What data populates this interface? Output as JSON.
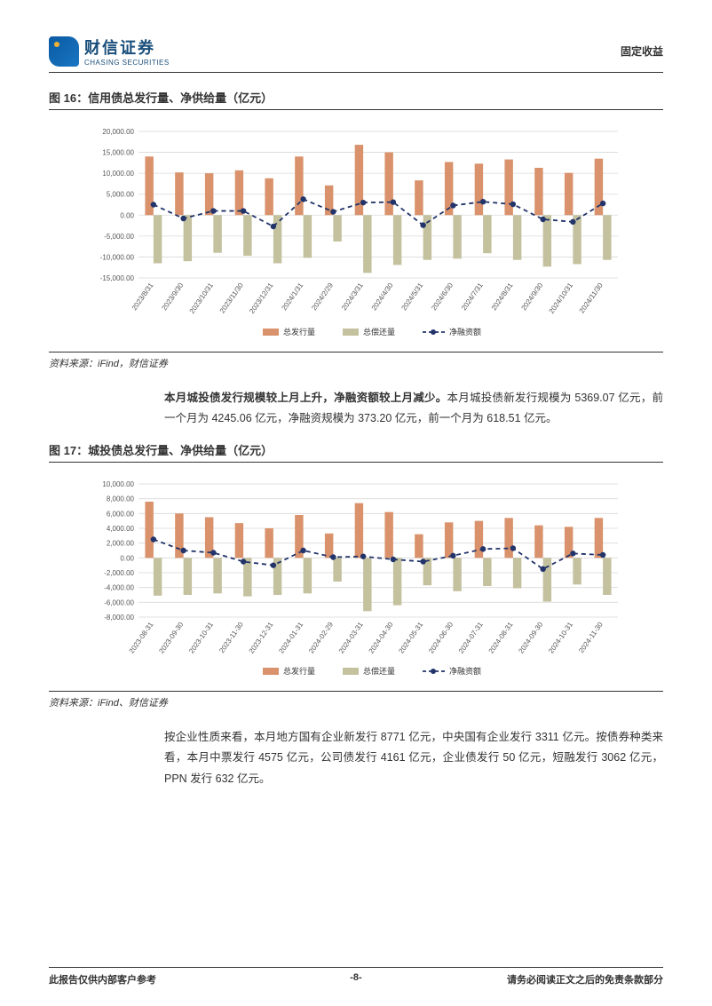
{
  "header": {
    "company_cn": "财信证券",
    "company_en": "CHASING SECURITIES",
    "category": "固定收益"
  },
  "figure16": {
    "title": "图 16：信用债总发行量、净供给量（亿元）",
    "source": "资料来源：iFind，财信证券",
    "type": "bar-line-combo",
    "background_color": "#ffffff",
    "grid_color": "#d9d9d9",
    "bar_colors": {
      "issued": "#d9926b",
      "repaid": "#c4c19f"
    },
    "line_color": "#22346a",
    "marker_color": "#22346a",
    "ylim": [
      -15000,
      20000
    ],
    "ytick_step": 5000,
    "yticks": [
      "-15,000.00",
      "-10,000.00",
      "-5,000.00",
      "0.00",
      "5,000.00",
      "10,000.00",
      "15,000.00",
      "20,000.00"
    ],
    "tick_fontsize": 8,
    "categories": [
      "2023/8/31",
      "2023/9/30",
      "2023/10/31",
      "2023/11/30",
      "2023/12/31",
      "2024/1/31",
      "2024/2/29",
      "2024/3/31",
      "2024/4/30",
      "2024/5/31",
      "2024/6/30",
      "2024/7/31",
      "2024/8/31",
      "2024/9/30",
      "2024/10/31",
      "2024/11/30"
    ],
    "issued": [
      14000,
      10200,
      10000,
      10700,
      8800,
      14000,
      7100,
      16800,
      15000,
      8300,
      12700,
      12300,
      13300,
      11300,
      10100,
      13500
    ],
    "repaid": [
      -11500,
      -11000,
      -9000,
      -9700,
      -11500,
      -10200,
      -6300,
      -13800,
      -11900,
      -10700,
      -10400,
      -9100,
      -10700,
      -12300,
      -11700,
      -10700
    ],
    "net": [
      2500,
      -800,
      1000,
      1000,
      -2700,
      3800,
      800,
      3000,
      3100,
      -2400,
      2300,
      3200,
      2600,
      -1000,
      -1600,
      2800
    ],
    "legend": {
      "issued": "总发行量",
      "repaid": "总偿还量",
      "net": "净融资额"
    }
  },
  "paragraph1": {
    "bold": "本月城投债发行规模较上月上升，净融资额较上月减少。",
    "rest": "本月城投债新发行规模为 5369.07 亿元，前一个月为 4245.06 亿元，净融资规模为 373.20 亿元，前一个月为 618.51 亿元。"
  },
  "figure17": {
    "title": "图 17：城投债总发行量、净供给量（亿元）",
    "source": "资料来源：iFind、财信证券",
    "type": "bar-line-combo",
    "background_color": "#ffffff",
    "grid_color": "#d9d9d9",
    "bar_colors": {
      "issued": "#d9926b",
      "repaid": "#c4c19f"
    },
    "line_color": "#22346a",
    "marker_color": "#22346a",
    "ylim": [
      -8000,
      10000
    ],
    "ytick_step": 2000,
    "yticks": [
      "-8,000.00",
      "-6,000.00",
      "-4,000.00",
      "-2,000.00",
      "0.00",
      "2,000.00",
      "4,000.00",
      "6,000.00",
      "8,000.00",
      "10,000.00"
    ],
    "tick_fontsize": 8,
    "categories": [
      "2023-08-31",
      "2023-09-30",
      "2023-10-31",
      "2023-11-30",
      "2023-12-31",
      "2024-01-31",
      "2024-02-29",
      "2024-03-31",
      "2024-04-30",
      "2024-05-31",
      "2024-06-30",
      "2024-07-31",
      "2024-08-31",
      "2024-09-30",
      "2024-10-31",
      "2024-11-30"
    ],
    "issued": [
      7600,
      6000,
      5500,
      4700,
      4000,
      5800,
      3300,
      7400,
      6200,
      3200,
      4800,
      5000,
      5400,
      4400,
      4200,
      5400
    ],
    "repaid": [
      -5100,
      -5000,
      -4800,
      -5200,
      -5000,
      -4800,
      -3200,
      -7200,
      -6400,
      -3700,
      -4500,
      -3800,
      -4100,
      -5900,
      -3600,
      -5000
    ],
    "net": [
      2500,
      1000,
      700,
      -500,
      -1000,
      1000,
      100,
      200,
      -200,
      -500,
      300,
      1200,
      1300,
      -1500,
      600,
      400
    ],
    "legend": {
      "issued": "总发行量",
      "repaid": "总偿还量",
      "net": "净融资额"
    }
  },
  "paragraph2": "按企业性质来看，本月地方国有企业新发行 8771 亿元，中央国有企业发行 3311 亿元。按债券种类来看，本月中票发行 4575 亿元，公司债发行 4161 亿元，企业债发行 50 亿元，短融发行 3062 亿元，PPN 发行 632 亿元。",
  "footer": {
    "left": "此报告仅供内部客户参考",
    "center": "-8-",
    "right": "请务必阅读正文之后的免责条款部分"
  }
}
